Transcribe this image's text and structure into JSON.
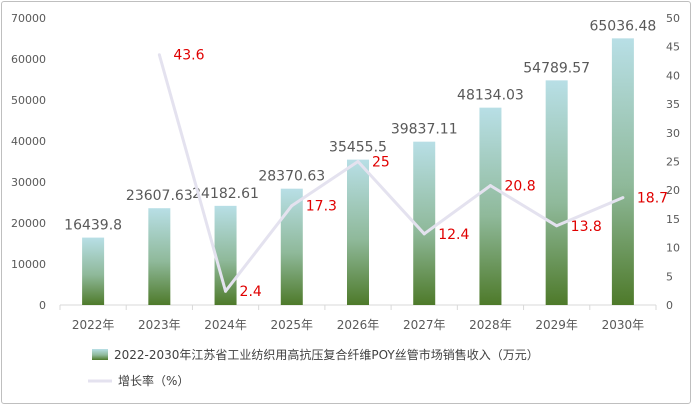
{
  "chart_data": {
    "type": "bar+line",
    "categories": [
      "2022年",
      "2023年",
      "2024年",
      "2025年",
      "2026年",
      "2027年",
      "2028年",
      "2029年",
      "2030年"
    ],
    "series": [
      {
        "name": "2022-2030年江苏省工业纺织用高抗压复合纤维POY丝管市场销售收入（万元）",
        "type": "bar",
        "axis": "left",
        "values": [
          16439.8,
          23607.63,
          24182.61,
          28370.63,
          35455.5,
          39837.11,
          48134.03,
          54789.57,
          65036.48
        ],
        "labels": [
          "16439.8",
          "23607.63",
          "24182.61",
          "28370.63",
          "35455.5",
          "39837.11",
          "48134.03",
          "54789.57",
          "65036.48"
        ]
      },
      {
        "name": "增长率（%）",
        "type": "line",
        "axis": "right",
        "values": [
          null,
          43.6,
          2.4,
          17.3,
          25,
          12.4,
          20.8,
          13.8,
          18.7
        ],
        "labels": [
          "",
          "43.6",
          "2.4",
          "17.3",
          "25",
          "12.4",
          "20.8",
          "13.8",
          "18.7"
        ]
      }
    ],
    "y_left": {
      "min": 0,
      "max": 70000,
      "ticks": [
        "0",
        "10000",
        "20000",
        "30000",
        "40000",
        "50000",
        "60000",
        "70000"
      ]
    },
    "y_right": {
      "min": 0,
      "max": 50,
      "ticks": [
        "0",
        "5",
        "10",
        "15",
        "20",
        "25",
        "30",
        "35",
        "40",
        "45",
        "50"
      ]
    },
    "grid": false,
    "legend": "bottom-left",
    "colors": {
      "bar_top": "#b8dfe6",
      "bar_bottom": "#4e7a2a",
      "line": "#e4e2ef",
      "rate_label": "#e00000",
      "value_label": "#595959",
      "tick": "#595959"
    }
  }
}
